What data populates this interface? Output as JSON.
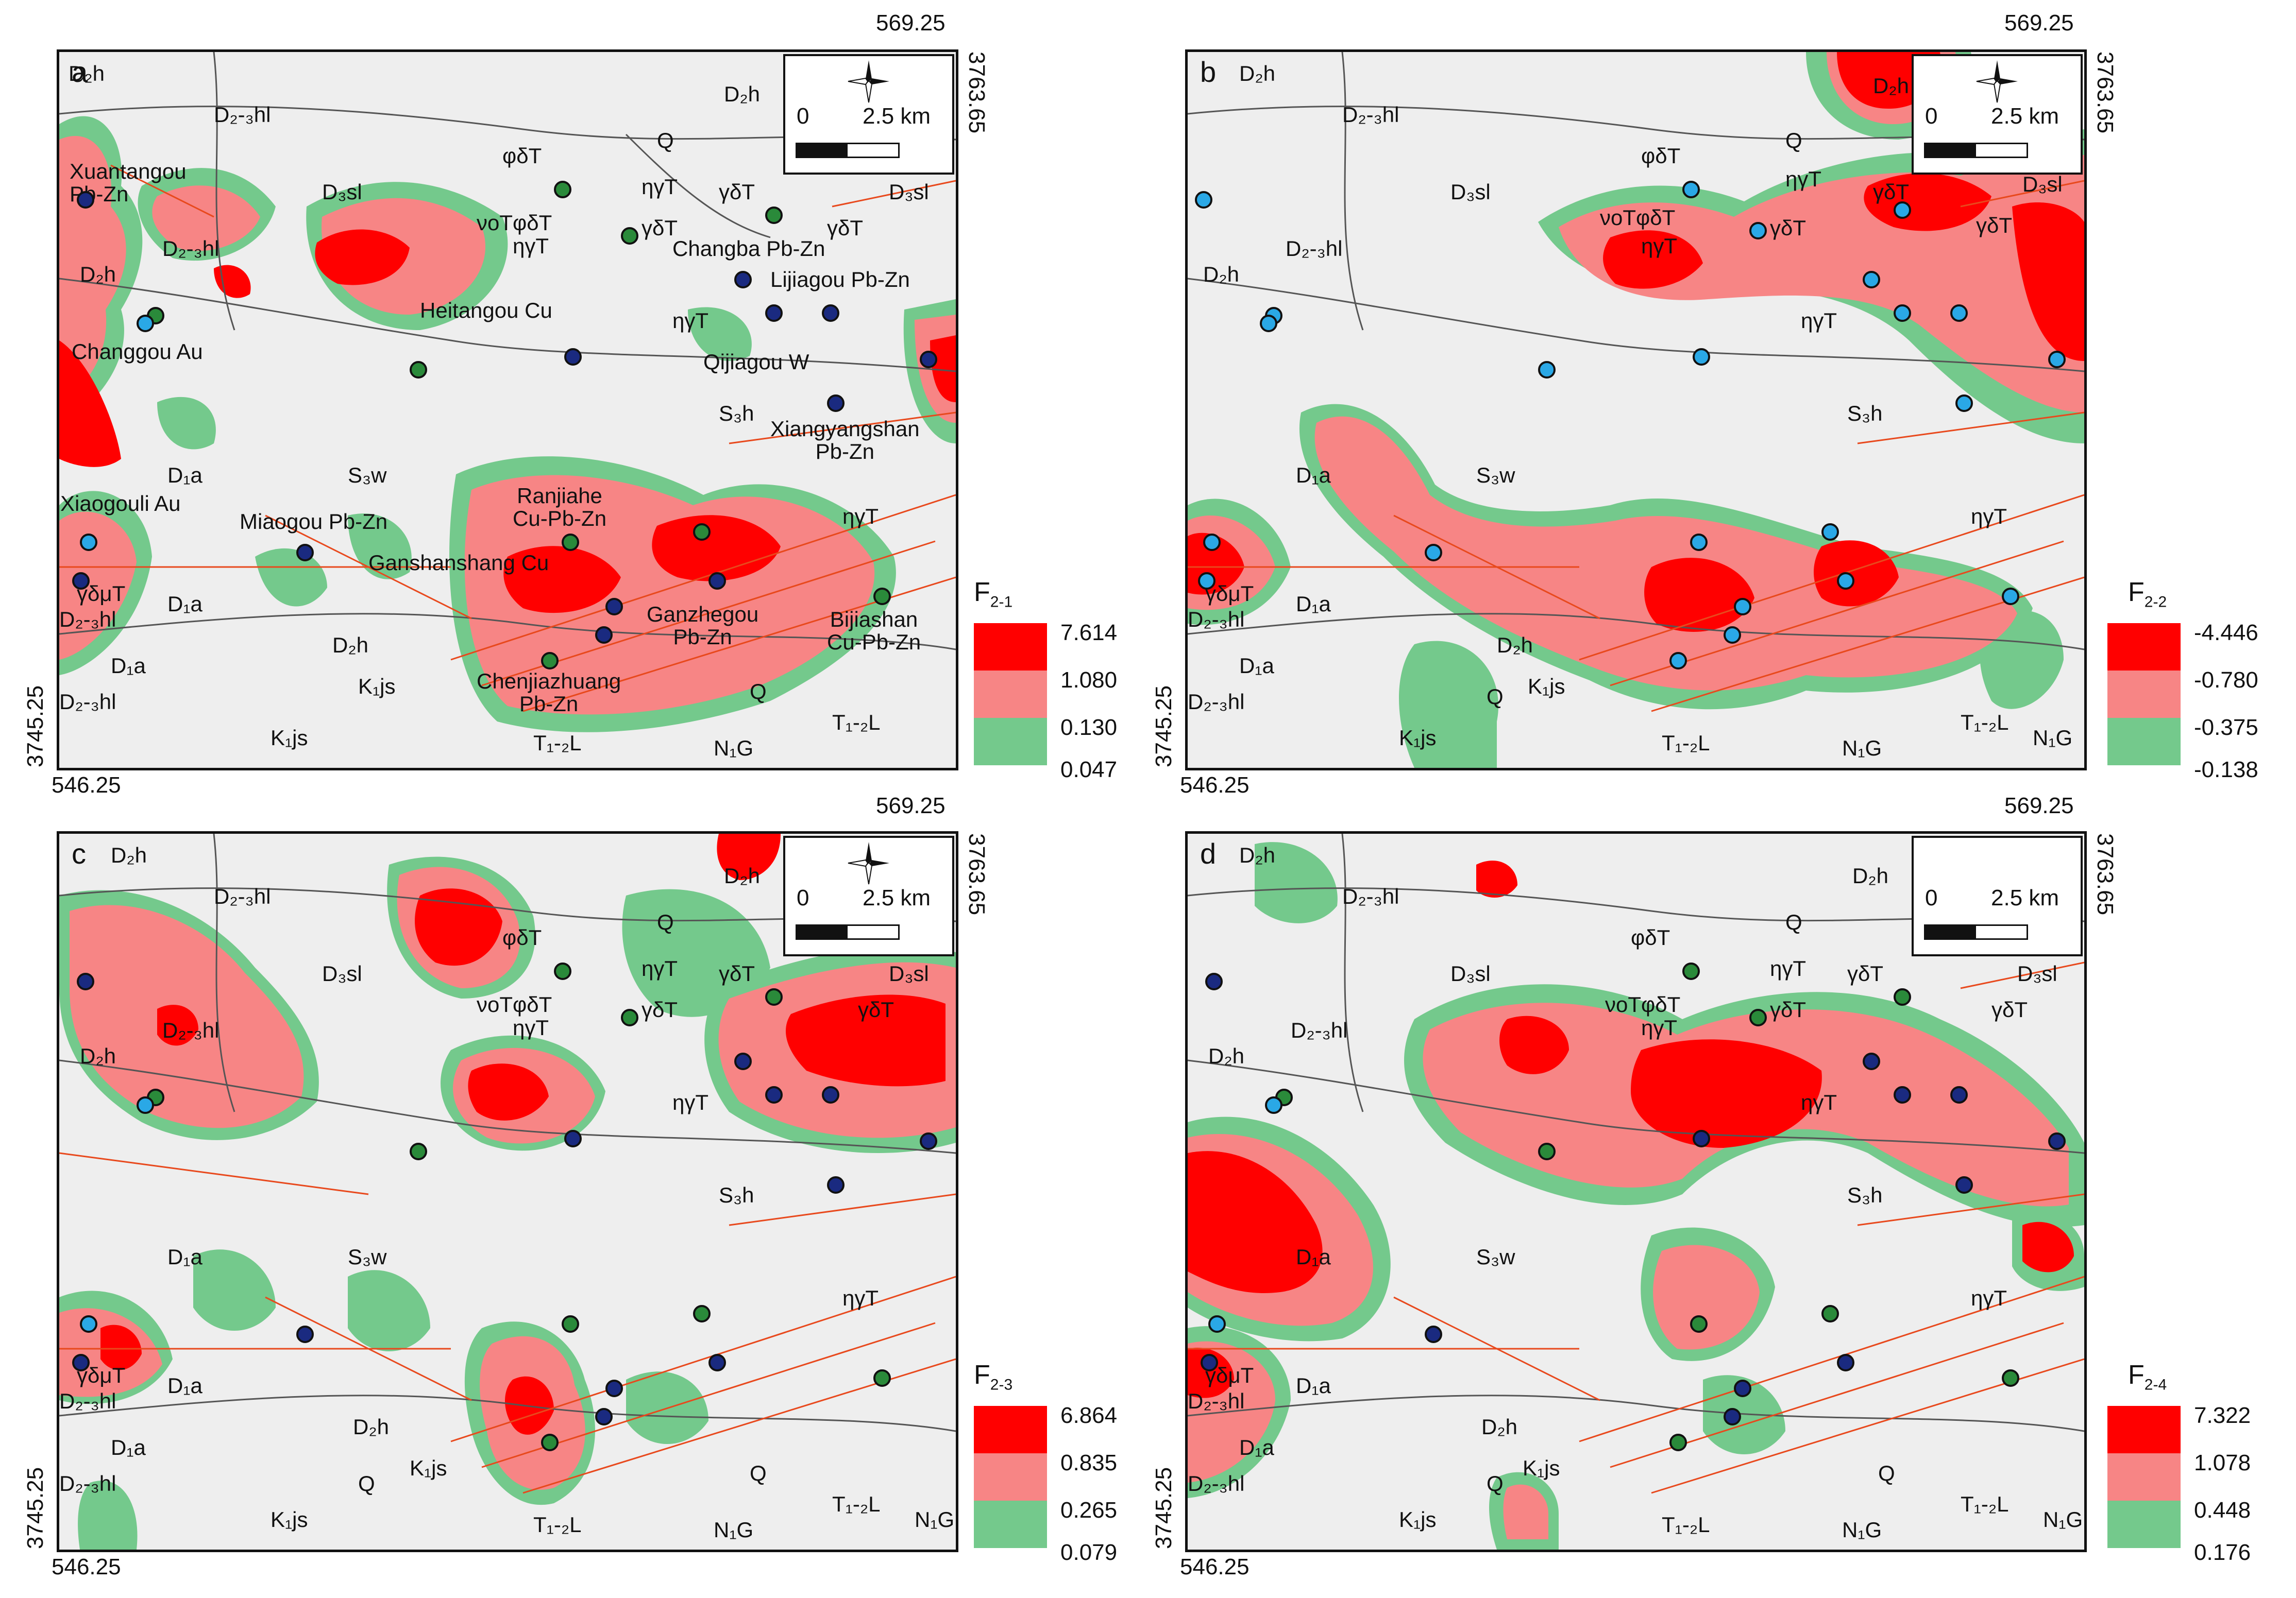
{
  "colors": {
    "high": "#ff0000",
    "mid": "#f78585",
    "low": "#74c98c",
    "bg": "#eeeeee",
    "fault": "#e8491d",
    "geo": "#555555",
    "mine_pbzn": "#1a2a80",
    "mine_cu": "#2a8a3a",
    "mine_au": "#2aa8e6"
  },
  "coords": {
    "top_right": "569.25",
    "left_bottom": "3745.25",
    "right_top": "3763.65",
    "bottom_left": "546.25"
  },
  "scale": {
    "zero": "0",
    "length": "2.5 km",
    "north": "N",
    "south": "S",
    "east": "E",
    "west": "W"
  },
  "panels": [
    {
      "id": "a",
      "legend_title": "F",
      "legend_sub": "2-1",
      "legend_values": [
        "7.614",
        "1.080",
        "0.130",
        "0.047"
      ]
    },
    {
      "id": "b",
      "legend_title": "F",
      "legend_sub": "2-2",
      "legend_values": [
        "-4.446",
        "-0.780",
        "-0.375",
        "-0.138"
      ]
    },
    {
      "id": "c",
      "legend_title": "F",
      "legend_sub": "2-3",
      "legend_values": [
        "6.864",
        "0.835",
        "0.265",
        "0.079"
      ]
    },
    {
      "id": "d",
      "legend_title": "F",
      "legend_sub": "2-4",
      "legend_values": [
        "7.322",
        "1.078",
        "0.448",
        "0.176"
      ]
    }
  ],
  "units": {
    "D2h": "D₂h",
    "D23hl": "D₂-₃hl",
    "D3sl": "D₃sl",
    "Q": "Q",
    "phidT": "φδT",
    "etagT": "ηγT",
    "gdT": "γδT",
    "vophidT": "νοTφδT",
    "D1a": "D₁a",
    "S3w": "S₃w",
    "S3h": "S₃h",
    "gdmuT": "γδμT",
    "K1js": "K₁js",
    "T12L": "T₁-₂L",
    "N1G": "N₁G"
  },
  "deposits": {
    "xuantangou": "Xuantangou\nPb-Zn",
    "changba": "Changba Pb-Zn",
    "lijiagou": "Lijiagou Pb-Zn",
    "heitangou": "Heitangou Cu",
    "changgou": "Changgou Au",
    "qijiagou": "Qijiagou W",
    "xiangyangshan": "Xiangyangshan\nPb-Zn",
    "ranjiahe": "Ranjiahe\nCu-Pb-Zn",
    "xiaogouli": "Xiaogouli Au",
    "miaogou": "Miaogou Pb-Zn",
    "ganshanshang": "Ganshanshang Cu",
    "ganzhegou": "Ganzhegou\nPb-Zn",
    "bijiashan": "Bijiashan\nCu-Pb-Zn",
    "chenjiazhuang": "Chenjiazhuang\nPb-Zn"
  }
}
